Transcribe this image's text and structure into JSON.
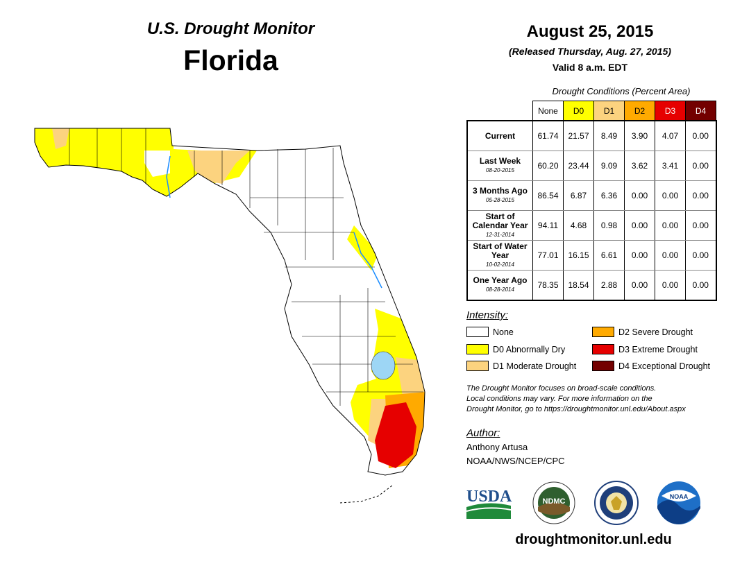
{
  "header": {
    "monitor_title": "U.S. Drought Monitor",
    "state": "Florida",
    "map_date": "August 25, 2015",
    "released": "(Released Thursday, Aug. 27, 2015)",
    "valid": "Valid 8 a.m. EDT"
  },
  "table": {
    "caption": "Drought Conditions (Percent Area)",
    "columns": [
      "None",
      "D0",
      "D1",
      "D2",
      "D3",
      "D4"
    ],
    "column_colors": [
      "#ffffff",
      "#ffff00",
      "#fcd37f",
      "#ffaa00",
      "#e60000",
      "#730000"
    ],
    "rows": [
      {
        "label": "Current",
        "date": "",
        "values": [
          "61.74",
          "21.57",
          "8.49",
          "3.90",
          "4.07",
          "0.00"
        ]
      },
      {
        "label": "Last Week",
        "date": "08-20-2015",
        "values": [
          "60.20",
          "23.44",
          "9.09",
          "3.62",
          "3.41",
          "0.00"
        ]
      },
      {
        "label": "3 Months Ago",
        "date": "05-28-2015",
        "values": [
          "86.54",
          "6.87",
          "6.36",
          "0.00",
          "0.00",
          "0.00"
        ]
      },
      {
        "label": "Start of Calendar Year",
        "date": "12-31-2014",
        "values": [
          "94.11",
          "4.68",
          "0.98",
          "0.00",
          "0.00",
          "0.00"
        ]
      },
      {
        "label": "Start of Water Year",
        "date": "10-02-2014",
        "values": [
          "77.01",
          "16.15",
          "6.61",
          "0.00",
          "0.00",
          "0.00"
        ]
      },
      {
        "label": "One Year Ago",
        "date": "08-28-2014",
        "values": [
          "78.35",
          "18.54",
          "2.88",
          "0.00",
          "0.00",
          "0.00"
        ]
      }
    ]
  },
  "legend": {
    "heading": "Intensity:",
    "items": [
      {
        "label": "None",
        "color": "#ffffff"
      },
      {
        "label": "D0 Abnormally Dry",
        "color": "#ffff00"
      },
      {
        "label": "D1 Moderate Drought",
        "color": "#fcd37f"
      },
      {
        "label": "D2 Severe Drought",
        "color": "#ffaa00"
      },
      {
        "label": "D3 Extreme Drought",
        "color": "#e60000"
      },
      {
        "label": "D4 Exceptional Drought",
        "color": "#730000"
      }
    ]
  },
  "disclaimer": {
    "line1": "The Drought Monitor focuses on broad-scale conditions.",
    "line2": "Local conditions may vary. For more information on the",
    "line3": "Drought Monitor, go to https://droughtmonitor.unl.edu/About.aspx"
  },
  "author": {
    "heading": "Author:",
    "name": "Anthony Artusa",
    "org": "NOAA/NWS/NCEP/CPC"
  },
  "logos": {
    "usda": "USDA",
    "ndmc": "NDMC",
    "noaa": "NOAA"
  },
  "website": "droughtmonitor.unl.edu"
}
